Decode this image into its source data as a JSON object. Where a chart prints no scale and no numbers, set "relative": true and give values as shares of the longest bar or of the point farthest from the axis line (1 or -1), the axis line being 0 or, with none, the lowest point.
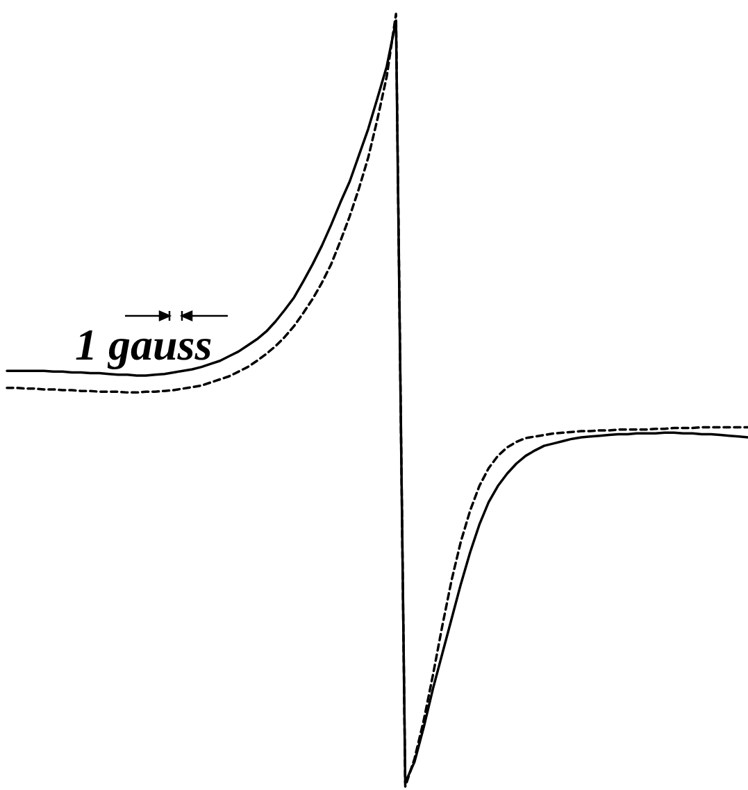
{
  "chart_data": {
    "type": "line",
    "relative": true,
    "categories": [
      null,
      null,
      null,
      null,
      null,
      null,
      null,
      null,
      null,
      null,
      null,
      null,
      null,
      null,
      null,
      null,
      null,
      null,
      null,
      null,
      null,
      null,
      null,
      null,
      null,
      null,
      null,
      null,
      null,
      null,
      null,
      null,
      null,
      null,
      null,
      null,
      null,
      null,
      null,
      null,
      null,
      null,
      null,
      null,
      null,
      null,
      null,
      null,
      null,
      null,
      null,
      null,
      null,
      null,
      null,
      null,
      null,
      null,
      null,
      null,
      null,
      null,
      null,
      null,
      null,
      null,
      null,
      null,
      null,
      null,
      null,
      null,
      null,
      null,
      null,
      null,
      null,
      null,
      null,
      null,
      null
    ],
    "series": [
      {
        "color": "#000000",
        "line_style": "solid",
        "values": [
          0.538,
          0.538,
          0.538,
          0.538,
          0.538,
          0.537,
          0.537,
          0.536,
          0.536,
          0.535,
          0.535,
          0.534,
          0.533,
          0.533,
          0.532,
          0.532,
          0.533,
          0.534,
          0.536,
          0.538,
          0.54,
          0.543,
          0.547,
          0.551,
          0.557,
          0.563,
          0.571,
          0.579,
          0.589,
          0.602,
          0.617,
          0.633,
          0.654,
          0.676,
          0.7,
          0.727,
          0.756,
          0.783,
          0.817,
          0.851,
          0.891,
          0.932,
          0.991,
          0.005,
          0.032,
          0.077,
          0.127,
          0.172,
          0.217,
          0.262,
          0.303,
          0.339,
          0.368,
          0.389,
          0.405,
          0.418,
          0.428,
          0.435,
          0.441,
          0.444,
          0.447,
          0.45,
          0.452,
          0.453,
          0.454,
          0.455,
          0.456,
          0.456,
          0.457,
          0.457,
          0.457,
          0.458,
          0.458,
          0.457,
          0.457,
          0.456,
          0.456,
          0.455,
          0.454,
          0.453,
          0.452
        ]
      },
      {
        "color": "#000000",
        "line_style": "dashed",
        "values": [
          0.516,
          0.516,
          0.515,
          0.515,
          0.514,
          0.514,
          0.513,
          0.513,
          0.512,
          0.512,
          0.511,
          0.511,
          0.511,
          0.51,
          0.51,
          0.511,
          0.511,
          0.512,
          0.513,
          0.515,
          0.517,
          0.519,
          0.523,
          0.527,
          0.531,
          0.537,
          0.543,
          0.551,
          0.56,
          0.57,
          0.582,
          0.596,
          0.613,
          0.631,
          0.652,
          0.676,
          0.706,
          0.738,
          0.774,
          0.814,
          0.864,
          0.919,
          1,
          0,
          0.036,
          0.086,
          0.145,
          0.208,
          0.267,
          0.317,
          0.357,
          0.389,
          0.412,
          0.428,
          0.439,
          0.446,
          0.451,
          0.453,
          0.455,
          0.457,
          0.458,
          0.459,
          0.46,
          0.46,
          0.461,
          0.461,
          0.462,
          0.462,
          0.462,
          0.462,
          0.463,
          0.463,
          0.464,
          0.464,
          0.464,
          0.465,
          0.465,
          0.465,
          0.465,
          0.465,
          0.465
        ]
      }
    ],
    "annotations": [
      "1 gauss"
    ]
  }
}
